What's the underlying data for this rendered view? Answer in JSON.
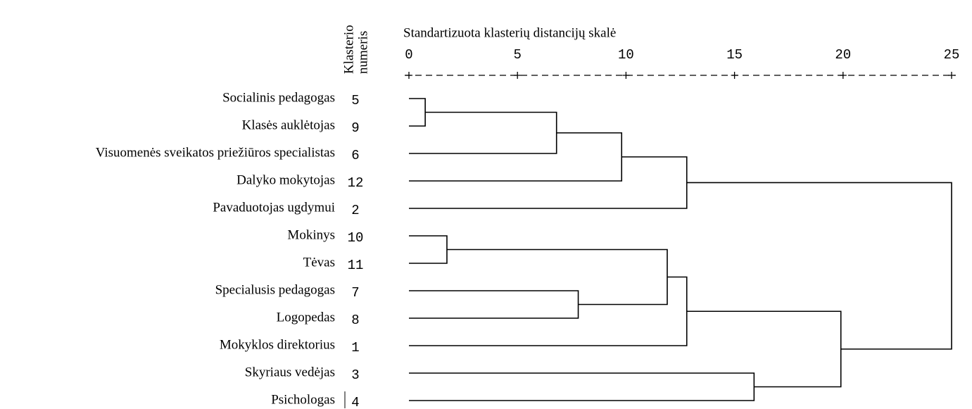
{
  "chart_data": {
    "type": "dendrogram",
    "title": "Standartizuota klasterių distancijų skalė",
    "number_label": [
      "Klasterio",
      "numeris"
    ],
    "leaves": [
      {
        "label": "Socialinis pedagogas",
        "number": 5
      },
      {
        "label": "Klasės auklėtojas",
        "number": 9
      },
      {
        "label": "Visuomenės sveikatos priežiūros specialistas",
        "number": 6
      },
      {
        "label": "Dalyko mokytojas",
        "number": 12
      },
      {
        "label": "Pavaduotojas ugdymui",
        "number": 2
      },
      {
        "label": "Mokinys",
        "number": 10
      },
      {
        "label": "Tėvas",
        "number": 11
      },
      {
        "label": "Specialusis pedagogas",
        "number": 7
      },
      {
        "label": "Logopedas",
        "number": 8
      },
      {
        "label": "Mokyklos direktorius",
        "number": 1
      },
      {
        "label": "Skyriaus vedėjas",
        "number": 3
      },
      {
        "label": "Psichologas",
        "number": 4
      }
    ],
    "merges": [
      {
        "children": [
          0,
          1
        ],
        "height": 0.75
      },
      {
        "children": [
          12,
          2
        ],
        "height": 6.8
      },
      {
        "children": [
          13,
          3
        ],
        "height": 9.8
      },
      {
        "children": [
          14,
          4
        ],
        "height": 12.8
      },
      {
        "children": [
          5,
          6
        ],
        "height": 1.75
      },
      {
        "children": [
          7,
          8
        ],
        "height": 7.8
      },
      {
        "children": [
          16,
          17
        ],
        "height": 11.9
      },
      {
        "children": [
          18,
          9
        ],
        "height": 12.8
      },
      {
        "children": [
          10,
          11
        ],
        "height": 15.9
      },
      {
        "children": [
          19,
          20
        ],
        "height": 19.9
      },
      {
        "children": [
          15,
          21
        ],
        "height": 25
      }
    ],
    "xlim": [
      0,
      25
    ],
    "xticks": [
      0,
      5,
      10,
      15,
      20,
      25
    ]
  }
}
